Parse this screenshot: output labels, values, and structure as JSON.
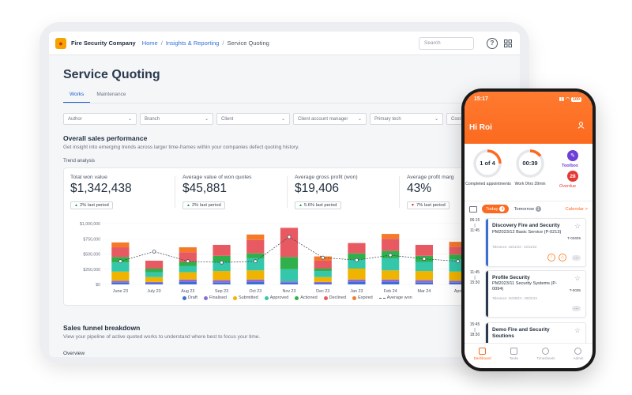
{
  "app": {
    "company": "Fire Security Company",
    "breadcrumb": [
      "Home",
      "Insights & Reporting",
      "Service Quoting"
    ],
    "search_placeholder": "Search",
    "help_icon": "help-icon",
    "apps_icon": "apps-grid-icon"
  },
  "page": {
    "title": "Service Quoting",
    "tabs": [
      {
        "label": "Works",
        "active": true
      },
      {
        "label": "Maintenance",
        "active": false
      }
    ],
    "filters": [
      "Author",
      "Branch",
      "Client",
      "Client account manager",
      "Primary tech",
      "Cost"
    ]
  },
  "overall": {
    "title": "Overall sales performance",
    "subtitle": "Get insight into emerging trends across larger time-frames within your companies defect quoting history.",
    "trend_label": "Trend analysis",
    "kpis": [
      {
        "label": "Total won value",
        "value": "$1,342,438",
        "badge": "2% last period",
        "dir": "up"
      },
      {
        "label": "Average value of won quotes",
        "value": "$45,881",
        "badge": "2% last period",
        "dir": "up"
      },
      {
        "label": "Average gross profit (won)",
        "value": "$19,406",
        "badge": "5.6% last period",
        "dir": "up"
      },
      {
        "label": "Average profit marg",
        "value": "43%",
        "badge": "7% last period",
        "dir": "down"
      }
    ]
  },
  "chart_data": {
    "type": "bar",
    "stacked": true,
    "categories": [
      "June 23",
      "July 23",
      "Aug 23",
      "Sep 23",
      "Oct 23",
      "Nov 23",
      "Dec 23",
      "Jan 23",
      "Feb 24",
      "Mar 24",
      "Apri"
    ],
    "ylim": [
      0,
      1000000
    ],
    "yticks": [
      "$0",
      "$250,000",
      "$500,000",
      "$750,000",
      "$1,000,000"
    ],
    "series": [
      {
        "name": "Draft",
        "color": "#3b6fd1",
        "values": [
          30000,
          20000,
          40000,
          30000,
          40000,
          30000,
          20000,
          40000,
          40000,
          30000,
          30000
        ]
      },
      {
        "name": "Finalised",
        "color": "#8e6bd8",
        "values": [
          30000,
          20000,
          40000,
          40000,
          40000,
          20000,
          20000,
          40000,
          40000,
          40000,
          30000
        ]
      },
      {
        "name": "Submitted",
        "color": "#f0b400",
        "values": [
          150000,
          80000,
          120000,
          150000,
          150000,
          0,
          80000,
          180000,
          150000,
          150000,
          150000
        ]
      },
      {
        "name": "Approved",
        "color": "#34c7a9",
        "values": [
          150000,
          80000,
          100000,
          150000,
          200000,
          200000,
          100000,
          150000,
          200000,
          150000,
          200000
        ]
      },
      {
        "name": "Actioned",
        "color": "#2fb04a",
        "values": [
          90000,
          60000,
          70000,
          100000,
          80000,
          200000,
          40000,
          100000,
          120000,
          100000,
          80000
        ]
      },
      {
        "name": "Declined",
        "color": "#e85a62",
        "values": [
          160000,
          130000,
          160000,
          180000,
          220000,
          480000,
          130000,
          170000,
          200000,
          180000,
          130000
        ]
      },
      {
        "name": "Expired",
        "color": "#f47a2a",
        "values": [
          80000,
          0,
          80000,
          0,
          90000,
          0,
          70000,
          0,
          80000,
          0,
          80000
        ]
      }
    ],
    "line": {
      "name": "Average won",
      "values": [
        380000,
        540000,
        380000,
        360000,
        380000,
        780000,
        440000,
        400000,
        480000,
        420000,
        380000
      ]
    }
  },
  "funnel": {
    "title": "Sales funnel breakdown",
    "subtitle": "View your pipeline of active quoted works to understand where best to focus your time.",
    "next": "Overview"
  },
  "phone": {
    "time": "15:17",
    "battery": "100",
    "greeting": "Hi Roi",
    "completed": {
      "value": "1 of 4",
      "label": "Completed appointments",
      "progress": 0.25
    },
    "work": {
      "value": "00:39",
      "label": "Work 0hrs 39min",
      "progress": 0.15
    },
    "toolbox": "Toolbox",
    "overdue": {
      "count": "28",
      "label": "Overdue"
    },
    "today": "Today",
    "today_count": "4",
    "tomorrow": "Tomorrow",
    "tomorrow_count": "1",
    "calendar": "Calendar >",
    "appointments": [
      {
        "time": "06:15\n|\n11:45",
        "title": "Discovery Fire and Security",
        "sub": "PM2023/12 Basic Service (P-0213)",
        "meta": "Tolerance: 16/11/23 - 22/11/23",
        "code": "T-02605",
        "color": "#3b6fd1"
      },
      {
        "time": "11:45\n|\n15:30",
        "title": "Profile Security",
        "sub": "PM2023/11 Security Systems (P-0094)",
        "meta": "Tolerance: 31/08/23 - 20/01/24",
        "code": "T-0035",
        "color": "#2b3a4e"
      },
      {
        "time": "15:45\n|\n18:30",
        "title": "Demo Fire and Security Soutions",
        "sub": "",
        "meta": "",
        "code": "",
        "color": "#2b3a4e"
      }
    ],
    "nav": [
      {
        "label": "Dashboard",
        "active": true
      },
      {
        "label": "Tasks",
        "active": false
      },
      {
        "label": "Timesheets",
        "active": false
      },
      {
        "label": "Admin",
        "active": false
      }
    ]
  }
}
